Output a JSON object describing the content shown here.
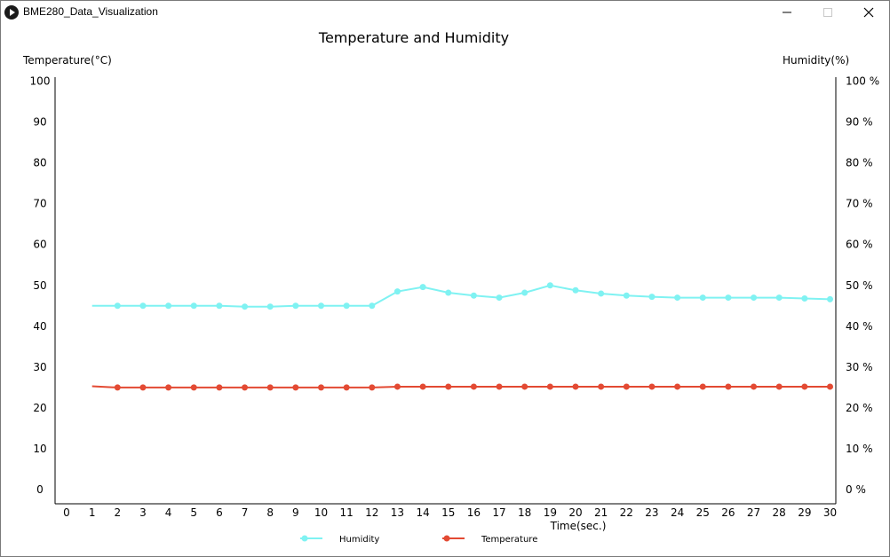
{
  "window": {
    "title": "BME280_Data_Visualization",
    "icons": {
      "app": "play-icon",
      "minimize": "minimize-icon",
      "maximize": "maximize-icon",
      "close": "close-icon"
    }
  },
  "chart_data": {
    "type": "line",
    "title": "Temperature and Humidity",
    "xlabel": "Time(sec.)",
    "ylabel_left": "Temperature(°C)",
    "ylabel_right": "Humidity(%)",
    "xlim": [
      0,
      30
    ],
    "ylim_left": [
      0,
      100
    ],
    "ylim_right": [
      0,
      100
    ],
    "x_ticks": [
      "0",
      "1",
      "2",
      "3",
      "4",
      "5",
      "6",
      "7",
      "8",
      "9",
      "10",
      "11",
      "12",
      "13",
      "14",
      "15",
      "16",
      "17",
      "18",
      "19",
      "20",
      "21",
      "22",
      "23",
      "24",
      "25",
      "26",
      "27",
      "28",
      "29",
      "30"
    ],
    "y_ticks_left": [
      "0",
      "10",
      "20",
      "30",
      "40",
      "50",
      "60",
      "70",
      "80",
      "90",
      "100"
    ],
    "y_ticks_right": [
      "0 %",
      "10 %",
      "20 %",
      "30 %",
      "40 %",
      "50 %",
      "60 %",
      "70 %",
      "80 %",
      "90 %",
      "100 %"
    ],
    "grid": false,
    "legend_position": "bottom-center",
    "series": [
      {
        "name": "Humidity",
        "axis": "right",
        "color": "#7ff2f2",
        "x": [
          1,
          2,
          3,
          4,
          5,
          6,
          7,
          8,
          9,
          10,
          11,
          12,
          13,
          14,
          15,
          16,
          17,
          18,
          19,
          20,
          21,
          22,
          23,
          24,
          25,
          26,
          27,
          28,
          29,
          30
        ],
        "y": [
          45.0,
          45.0,
          45.0,
          45.0,
          45.0,
          45.0,
          44.8,
          44.8,
          45.0,
          45.0,
          45.0,
          45.0,
          48.5,
          49.6,
          48.2,
          47.5,
          47.0,
          48.2,
          50.0,
          48.8,
          48.0,
          47.5,
          47.2,
          47.0,
          47.0,
          47.0,
          47.0,
          47.0,
          46.8,
          46.6
        ]
      },
      {
        "name": "Temperature",
        "axis": "left",
        "color": "#e34a33",
        "x": [
          1,
          2,
          3,
          4,
          5,
          6,
          7,
          8,
          9,
          10,
          11,
          12,
          13,
          14,
          15,
          16,
          17,
          18,
          19,
          20,
          21,
          22,
          23,
          24,
          25,
          26,
          27,
          28,
          29,
          30
        ],
        "y": [
          25.3,
          25.0,
          25.0,
          25.0,
          25.0,
          25.0,
          25.0,
          25.0,
          25.0,
          25.0,
          25.0,
          25.0,
          25.2,
          25.2,
          25.2,
          25.2,
          25.2,
          25.2,
          25.2,
          25.2,
          25.2,
          25.2,
          25.2,
          25.2,
          25.2,
          25.2,
          25.2,
          25.2,
          25.2,
          25.2
        ]
      }
    ]
  }
}
